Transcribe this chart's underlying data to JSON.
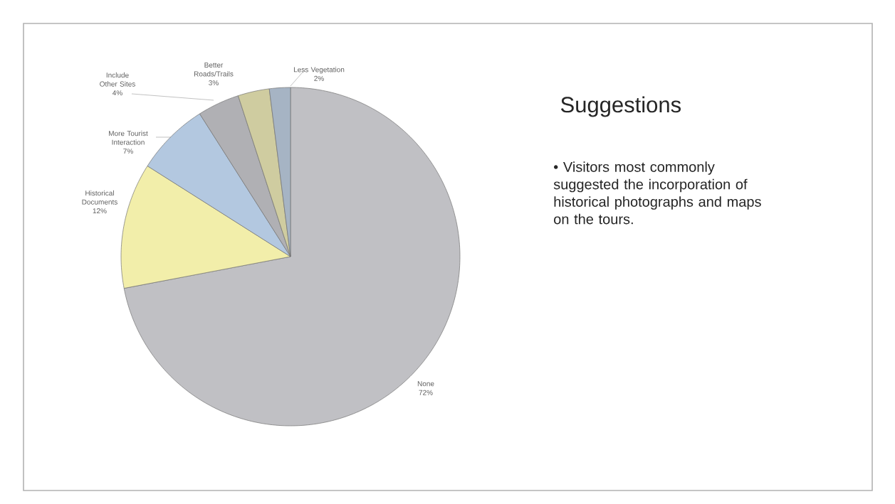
{
  "chart_data": {
    "type": "pie",
    "title": "Suggestions",
    "annotations": [
      "• Visitors most commonly suggested the incorporation of historical photographs and maps on the tours."
    ],
    "categories": [
      "None",
      "Historical Documents",
      "More Tourist Interaction",
      "Include Other Sites",
      "Better Roads/Trails",
      "Less Vegetation"
    ],
    "values": [
      72,
      12,
      7,
      4,
      3,
      2
    ],
    "value_labels": [
      "72%",
      "12%",
      "7%",
      "4%",
      "3%",
      "2%"
    ],
    "colors": [
      "#c0c0c4",
      "#f2eeaa",
      "#b3c8e0",
      "#b0b0b4",
      "#cfcca0",
      "#a6b4c4"
    ]
  }
}
